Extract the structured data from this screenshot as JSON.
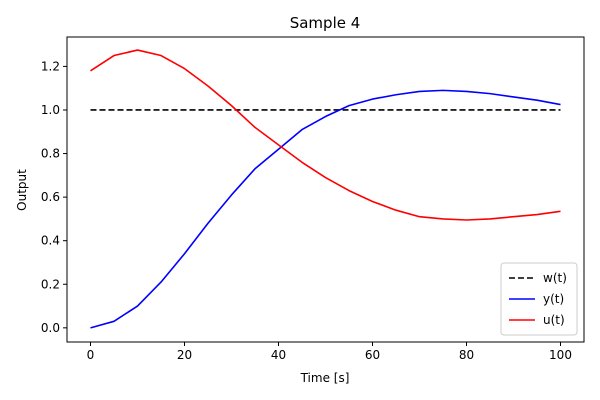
{
  "chart_data": {
    "type": "line",
    "title": "Sample 4",
    "xlabel": "Time [s]",
    "ylabel": "Output",
    "xlim": [
      -5,
      105
    ],
    "ylim": [
      -0.065,
      1.335
    ],
    "xticks": [
      0,
      20,
      40,
      60,
      80,
      100
    ],
    "yticks": [
      0.0,
      0.2,
      0.4,
      0.6,
      0.8,
      1.0,
      1.2
    ],
    "xtick_labels": [
      "0",
      "20",
      "40",
      "60",
      "80",
      "100"
    ],
    "ytick_labels": [
      "0.0",
      "0.2",
      "0.4",
      "0.6",
      "0.8",
      "1.0",
      "1.2"
    ],
    "grid": false,
    "legend_position": "lower-right",
    "series": [
      {
        "name": "w(t)",
        "color": "#000000",
        "style": "dashed",
        "x": [
          0,
          100
        ],
        "y": [
          1.0,
          1.0
        ]
      },
      {
        "name": "y(t)",
        "color": "#0000ff",
        "style": "solid",
        "x": [
          0,
          5,
          10,
          15,
          20,
          25,
          30,
          35,
          40,
          45,
          50,
          55,
          60,
          65,
          70,
          75,
          80,
          85,
          90,
          95,
          100
        ],
        "y": [
          0.0,
          0.03,
          0.1,
          0.21,
          0.34,
          0.48,
          0.61,
          0.73,
          0.82,
          0.91,
          0.97,
          1.02,
          1.05,
          1.07,
          1.085,
          1.09,
          1.085,
          1.075,
          1.06,
          1.045,
          1.025
        ]
      },
      {
        "name": "u(t)",
        "color": "#ff0000",
        "style": "solid",
        "x": [
          0,
          5,
          10,
          15,
          20,
          25,
          30,
          35,
          40,
          45,
          50,
          55,
          60,
          65,
          70,
          75,
          80,
          85,
          90,
          95,
          100
        ],
        "y": [
          1.18,
          1.25,
          1.275,
          1.25,
          1.19,
          1.11,
          1.02,
          0.92,
          0.84,
          0.76,
          0.69,
          0.63,
          0.58,
          0.54,
          0.51,
          0.5,
          0.495,
          0.5,
          0.51,
          0.52,
          0.535
        ]
      }
    ]
  }
}
